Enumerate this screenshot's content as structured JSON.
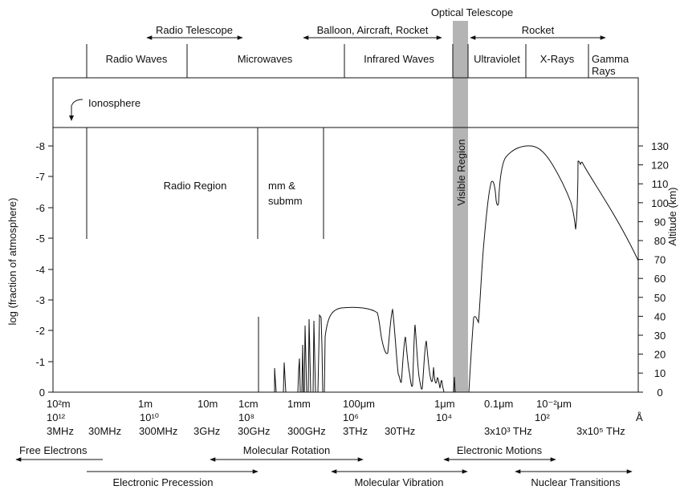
{
  "diagram": {
    "telescopes": {
      "radio": "Radio Telescope",
      "balloon": "Balloon, Aircraft, Rocket",
      "optical": "Optical Telescope",
      "rocket": "Rocket"
    },
    "bands": {
      "radio": "Radio Waves",
      "microwaves": "Microwaves",
      "infrared": "Infrared Waves",
      "ultraviolet": "Ultraviolet",
      "xrays": "X-Rays",
      "gamma_line1": "Gamma",
      "gamma_line2": "Rays"
    },
    "ionosphere": "Ionosphere",
    "regions": {
      "radio": "Radio Region",
      "mm_line1": "mm &",
      "mm_line2": "submm",
      "visible": "Visible Region"
    },
    "left_axis": {
      "label": "log (fraction of atmosphere)",
      "ticks": [
        "-8",
        "-7",
        "-6",
        "-5",
        "-4",
        "-3",
        "-2",
        "-1",
        "0"
      ]
    },
    "right_axis": {
      "label": "Altitude (km)",
      "ticks": [
        "130",
        "120",
        "110",
        "100",
        "90",
        "80",
        "70",
        "60",
        "50",
        "40",
        "30",
        "20",
        "10",
        "0"
      ]
    },
    "wavelength": {
      "row1": [
        "10²m",
        "1m",
        "10m",
        "1cm",
        "1mm",
        "100μm",
        "1μm",
        "0.1μm",
        "10⁻²μm"
      ],
      "row2": [
        "10¹²",
        "10¹⁰",
        "10⁸",
        "10⁶",
        "10⁴",
        "10²",
        "Å"
      ],
      "row3": [
        "3MHz",
        "30MHz",
        "300MHz",
        "3GHz",
        "30GHz",
        "300GHz",
        "3THz",
        "30THz",
        "3x10³ THz",
        "3x10⁵ THz"
      ]
    },
    "processes": {
      "free_electrons": "Free Electrons",
      "molecular_rotation": "Molecular Rotation",
      "electronic_motions": "Electronic Motions",
      "electronic_precession": "Electronic Precession",
      "molecular_vibration": "Molecular Vibration",
      "nuclear_transitions": "Nuclear Transitions"
    }
  }
}
